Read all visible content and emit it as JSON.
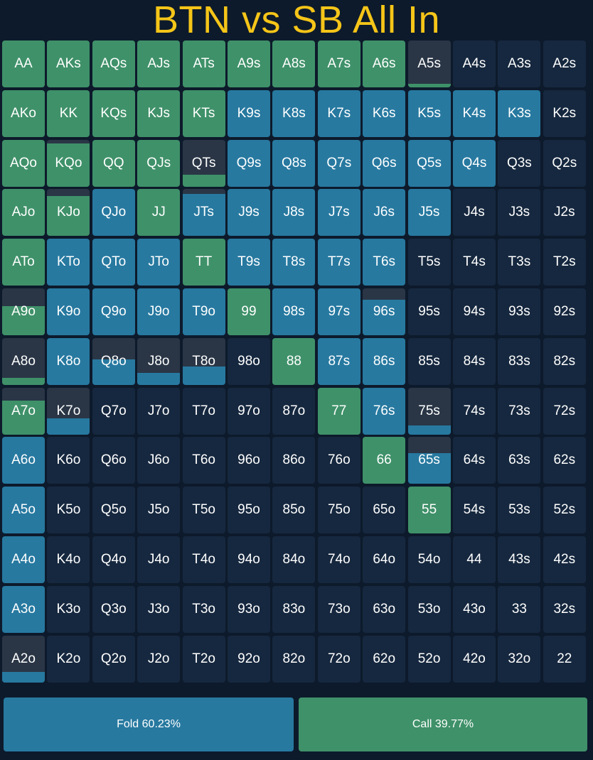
{
  "title": "BTN vs SB All In",
  "colors": {
    "call": "#3f9169",
    "fold": "#2779a0",
    "empty": "#16283f",
    "title": "#f5c518"
  },
  "legend": {
    "fold_label": "Fold 60.23%",
    "call_label": "Call 39.77%"
  },
  "rows": [
    [
      {
        "h": "AA",
        "c": 1,
        "f": 0
      },
      {
        "h": "AKs",
        "c": 1,
        "f": 0
      },
      {
        "h": "AQs",
        "c": 1,
        "f": 0
      },
      {
        "h": "AJs",
        "c": 1,
        "f": 0
      },
      {
        "h": "ATs",
        "c": 1,
        "f": 0
      },
      {
        "h": "A9s",
        "c": 1,
        "f": 0
      },
      {
        "h": "A8s",
        "c": 1,
        "f": 0
      },
      {
        "h": "A7s",
        "c": 1,
        "f": 0
      },
      {
        "h": "A6s",
        "c": 1,
        "f": 0
      },
      {
        "h": "A5s",
        "c": 0.08,
        "f": 0
      },
      {
        "h": "A4s",
        "c": 0,
        "f": 0
      },
      {
        "h": "A3s",
        "c": 0,
        "f": 0
      },
      {
        "h": "A2s",
        "c": 0,
        "f": 0
      }
    ],
    [
      {
        "h": "AKo",
        "c": 1,
        "f": 0
      },
      {
        "h": "KK",
        "c": 1,
        "f": 0
      },
      {
        "h": "KQs",
        "c": 1,
        "f": 0
      },
      {
        "h": "KJs",
        "c": 1,
        "f": 0
      },
      {
        "h": "KTs",
        "c": 1,
        "f": 0
      },
      {
        "h": "K9s",
        "c": 0,
        "f": 1
      },
      {
        "h": "K8s",
        "c": 0,
        "f": 1
      },
      {
        "h": "K7s",
        "c": 0,
        "f": 1
      },
      {
        "h": "K6s",
        "c": 0,
        "f": 1
      },
      {
        "h": "K5s",
        "c": 0,
        "f": 1
      },
      {
        "h": "K4s",
        "c": 0,
        "f": 1
      },
      {
        "h": "K3s",
        "c": 0,
        "f": 1
      },
      {
        "h": "K2s",
        "c": 0,
        "f": 0
      }
    ],
    [
      {
        "h": "AQo",
        "c": 1,
        "f": 0
      },
      {
        "h": "KQo",
        "c": 0.93,
        "f": 0
      },
      {
        "h": "QQ",
        "c": 1,
        "f": 0
      },
      {
        "h": "QJs",
        "c": 1,
        "f": 0
      },
      {
        "h": "QTs",
        "c": 0.25,
        "f": 0
      },
      {
        "h": "Q9s",
        "c": 0,
        "f": 1
      },
      {
        "h": "Q8s",
        "c": 0,
        "f": 1
      },
      {
        "h": "Q7s",
        "c": 0,
        "f": 1
      },
      {
        "h": "Q6s",
        "c": 0,
        "f": 1
      },
      {
        "h": "Q5s",
        "c": 0,
        "f": 1
      },
      {
        "h": "Q4s",
        "c": 0,
        "f": 1
      },
      {
        "h": "Q3s",
        "c": 0,
        "f": 0
      },
      {
        "h": "Q2s",
        "c": 0,
        "f": 0
      }
    ],
    [
      {
        "h": "AJo",
        "c": 1,
        "f": 0
      },
      {
        "h": "KJo",
        "c": 0.85,
        "f": 0
      },
      {
        "h": "QJo",
        "c": 0,
        "f": 1
      },
      {
        "h": "JJ",
        "c": 1,
        "f": 0
      },
      {
        "h": "JTs",
        "c": 0,
        "f": 0.9
      },
      {
        "h": "J9s",
        "c": 0,
        "f": 1
      },
      {
        "h": "J8s",
        "c": 0,
        "f": 1
      },
      {
        "h": "J7s",
        "c": 0,
        "f": 1
      },
      {
        "h": "J6s",
        "c": 0,
        "f": 1
      },
      {
        "h": "J5s",
        "c": 0,
        "f": 1
      },
      {
        "h": "J4s",
        "c": 0,
        "f": 0
      },
      {
        "h": "J3s",
        "c": 0,
        "f": 0
      },
      {
        "h": "J2s",
        "c": 0,
        "f": 0
      }
    ],
    [
      {
        "h": "ATo",
        "c": 1,
        "f": 0
      },
      {
        "h": "KTo",
        "c": 0,
        "f": 1
      },
      {
        "h": "QTo",
        "c": 0,
        "f": 1
      },
      {
        "h": "JTo",
        "c": 0,
        "f": 1
      },
      {
        "h": "TT",
        "c": 1,
        "f": 0
      },
      {
        "h": "T9s",
        "c": 0,
        "f": 1
      },
      {
        "h": "T8s",
        "c": 0,
        "f": 1
      },
      {
        "h": "T7s",
        "c": 0,
        "f": 1
      },
      {
        "h": "T6s",
        "c": 0,
        "f": 1
      },
      {
        "h": "T5s",
        "c": 0,
        "f": 0
      },
      {
        "h": "T4s",
        "c": 0,
        "f": 0
      },
      {
        "h": "T3s",
        "c": 0,
        "f": 0
      },
      {
        "h": "T2s",
        "c": 0,
        "f": 0
      }
    ],
    [
      {
        "h": "A9o",
        "c": 0.62,
        "f": 0
      },
      {
        "h": "K9o",
        "c": 0,
        "f": 1
      },
      {
        "h": "Q9o",
        "c": 0,
        "f": 1
      },
      {
        "h": "J9o",
        "c": 0,
        "f": 1
      },
      {
        "h": "T9o",
        "c": 0,
        "f": 1
      },
      {
        "h": "99",
        "c": 1,
        "f": 0
      },
      {
        "h": "98s",
        "c": 0,
        "f": 1
      },
      {
        "h": "97s",
        "c": 0,
        "f": 1
      },
      {
        "h": "96s",
        "c": 0,
        "f": 0.75
      },
      {
        "h": "95s",
        "c": 0,
        "f": 0
      },
      {
        "h": "94s",
        "c": 0,
        "f": 0
      },
      {
        "h": "93s",
        "c": 0,
        "f": 0
      },
      {
        "h": "92s",
        "c": 0,
        "f": 0
      }
    ],
    [
      {
        "h": "A8o",
        "c": 0.15,
        "f": 0
      },
      {
        "h": "K8o",
        "c": 0,
        "f": 1
      },
      {
        "h": "Q8o",
        "c": 0,
        "f": 0.55
      },
      {
        "h": "J8o",
        "c": 0,
        "f": 0.25
      },
      {
        "h": "T8o",
        "c": 0,
        "f": 0.4
      },
      {
        "h": "98o",
        "c": 0,
        "f": 0
      },
      {
        "h": "88",
        "c": 1,
        "f": 0
      },
      {
        "h": "87s",
        "c": 0,
        "f": 1
      },
      {
        "h": "86s",
        "c": 0,
        "f": 1
      },
      {
        "h": "85s",
        "c": 0,
        "f": 0
      },
      {
        "h": "84s",
        "c": 0,
        "f": 0
      },
      {
        "h": "83s",
        "c": 0,
        "f": 0
      },
      {
        "h": "82s",
        "c": 0,
        "f": 0
      }
    ],
    [
      {
        "h": "A7o",
        "c": 0.72,
        "f": 0
      },
      {
        "h": "K7o",
        "c": 0,
        "f": 0.35
      },
      {
        "h": "Q7o",
        "c": 0,
        "f": 0
      },
      {
        "h": "J7o",
        "c": 0,
        "f": 0
      },
      {
        "h": "T7o",
        "c": 0,
        "f": 0
      },
      {
        "h": "97o",
        "c": 0,
        "f": 0
      },
      {
        "h": "87o",
        "c": 0,
        "f": 0
      },
      {
        "h": "77",
        "c": 1,
        "f": 0
      },
      {
        "h": "76s",
        "c": 0,
        "f": 1
      },
      {
        "h": "75s",
        "c": 0,
        "f": 0.2
      },
      {
        "h": "74s",
        "c": 0,
        "f": 0
      },
      {
        "h": "73s",
        "c": 0,
        "f": 0
      },
      {
        "h": "72s",
        "c": 0,
        "f": 0
      }
    ],
    [
      {
        "h": "A6o",
        "c": 0,
        "f": 1
      },
      {
        "h": "K6o",
        "c": 0,
        "f": 0
      },
      {
        "h": "Q6o",
        "c": 0,
        "f": 0
      },
      {
        "h": "J6o",
        "c": 0,
        "f": 0
      },
      {
        "h": "T6o",
        "c": 0,
        "f": 0
      },
      {
        "h": "96o",
        "c": 0,
        "f": 0
      },
      {
        "h": "86o",
        "c": 0,
        "f": 0
      },
      {
        "h": "76o",
        "c": 0,
        "f": 0
      },
      {
        "h": "66",
        "c": 1,
        "f": 0
      },
      {
        "h": "65s",
        "c": 0,
        "f": 0.65
      },
      {
        "h": "64s",
        "c": 0,
        "f": 0
      },
      {
        "h": "63s",
        "c": 0,
        "f": 0
      },
      {
        "h": "62s",
        "c": 0,
        "f": 0
      }
    ],
    [
      {
        "h": "A5o",
        "c": 0,
        "f": 1
      },
      {
        "h": "K5o",
        "c": 0,
        "f": 0
      },
      {
        "h": "Q5o",
        "c": 0,
        "f": 0
      },
      {
        "h": "J5o",
        "c": 0,
        "f": 0
      },
      {
        "h": "T5o",
        "c": 0,
        "f": 0
      },
      {
        "h": "95o",
        "c": 0,
        "f": 0
      },
      {
        "h": "85o",
        "c": 0,
        "f": 0
      },
      {
        "h": "75o",
        "c": 0,
        "f": 0
      },
      {
        "h": "65o",
        "c": 0,
        "f": 0
      },
      {
        "h": "55",
        "c": 1,
        "f": 0
      },
      {
        "h": "54s",
        "c": 0,
        "f": 0
      },
      {
        "h": "53s",
        "c": 0,
        "f": 0
      },
      {
        "h": "52s",
        "c": 0,
        "f": 0
      }
    ],
    [
      {
        "h": "A4o",
        "c": 0,
        "f": 1
      },
      {
        "h": "K4o",
        "c": 0,
        "f": 0
      },
      {
        "h": "Q4o",
        "c": 0,
        "f": 0
      },
      {
        "h": "J4o",
        "c": 0,
        "f": 0
      },
      {
        "h": "T4o",
        "c": 0,
        "f": 0
      },
      {
        "h": "94o",
        "c": 0,
        "f": 0
      },
      {
        "h": "84o",
        "c": 0,
        "f": 0
      },
      {
        "h": "74o",
        "c": 0,
        "f": 0
      },
      {
        "h": "64o",
        "c": 0,
        "f": 0
      },
      {
        "h": "54o",
        "c": 0,
        "f": 0
      },
      {
        "h": "44",
        "c": 0,
        "f": 0
      },
      {
        "h": "43s",
        "c": 0,
        "f": 0
      },
      {
        "h": "42s",
        "c": 0,
        "f": 0
      }
    ],
    [
      {
        "h": "A3o",
        "c": 0,
        "f": 1
      },
      {
        "h": "K3o",
        "c": 0,
        "f": 0
      },
      {
        "h": "Q3o",
        "c": 0,
        "f": 0
      },
      {
        "h": "J3o",
        "c": 0,
        "f": 0
      },
      {
        "h": "T3o",
        "c": 0,
        "f": 0
      },
      {
        "h": "93o",
        "c": 0,
        "f": 0
      },
      {
        "h": "83o",
        "c": 0,
        "f": 0
      },
      {
        "h": "73o",
        "c": 0,
        "f": 0
      },
      {
        "h": "63o",
        "c": 0,
        "f": 0
      },
      {
        "h": "53o",
        "c": 0,
        "f": 0
      },
      {
        "h": "43o",
        "c": 0,
        "f": 0
      },
      {
        "h": "33",
        "c": 0,
        "f": 0
      },
      {
        "h": "32s",
        "c": 0,
        "f": 0
      }
    ],
    [
      {
        "h": "A2o",
        "c": 0,
        "f": 0.22
      },
      {
        "h": "K2o",
        "c": 0,
        "f": 0
      },
      {
        "h": "Q2o",
        "c": 0,
        "f": 0
      },
      {
        "h": "J2o",
        "c": 0,
        "f": 0
      },
      {
        "h": "T2o",
        "c": 0,
        "f": 0
      },
      {
        "h": "92o",
        "c": 0,
        "f": 0
      },
      {
        "h": "82o",
        "c": 0,
        "f": 0
      },
      {
        "h": "72o",
        "c": 0,
        "f": 0
      },
      {
        "h": "62o",
        "c": 0,
        "f": 0
      },
      {
        "h": "52o",
        "c": 0,
        "f": 0
      },
      {
        "h": "42o",
        "c": 0,
        "f": 0
      },
      {
        "h": "32o",
        "c": 0,
        "f": 0
      },
      {
        "h": "22",
        "c": 0,
        "f": 0
      }
    ]
  ]
}
